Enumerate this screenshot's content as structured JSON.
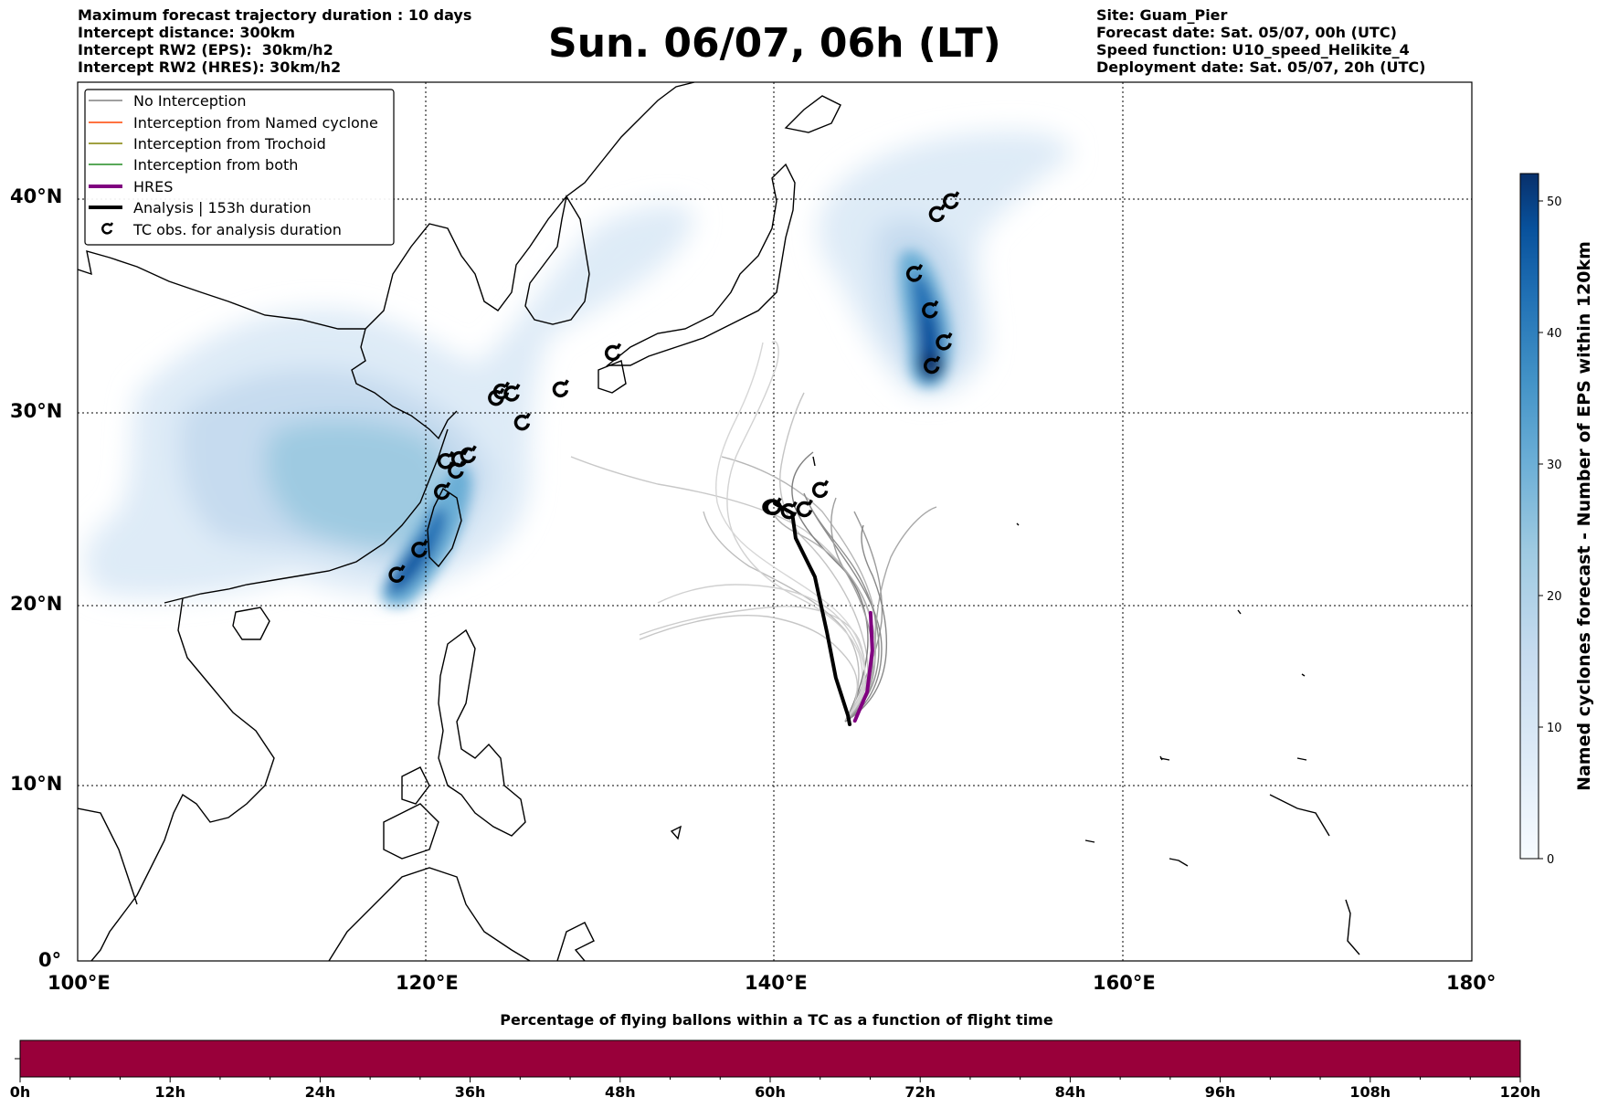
{
  "header": {
    "left": [
      "Maximum forecast trajectory duration : 10 days",
      "Intercept distance: 300km",
      "Intercept RW2 (EPS):  30km/h2",
      "Intercept RW2 (HRES): 30km/h2"
    ],
    "title": "Sun. 06/07, 06h (LT)",
    "right": [
      "Site: Guam_Pier",
      "Forecast date: Sat. 05/07, 00h (UTC)",
      "Speed function: U10_speed_Helikite_4",
      "Deployment date: Sat. 05/07, 20h (UTC)"
    ]
  },
  "map": {
    "lon_range": [
      100,
      180
    ],
    "lat_range": [
      0,
      45.5
    ],
    "lon_ticks": [
      "100°E",
      "120°E",
      "140°E",
      "160°E",
      "180°"
    ],
    "lat_ticks": [
      "0°",
      "10°N",
      "20°N",
      "30°N",
      "40°N"
    ],
    "grid": "dotted"
  },
  "legend": {
    "items": [
      {
        "label": "No Interception",
        "color": "#808080"
      },
      {
        "label": "Interception from Named cyclone",
        "color": "#ff4500"
      },
      {
        "label": "Interception from Trochoid",
        "color": "#808000"
      },
      {
        "label": "Interception from both",
        "color": "#228b22"
      },
      {
        "label": "HRES",
        "color": "#800080"
      },
      {
        "label": "Analysis | 153h duration",
        "color": "#000000"
      },
      {
        "label": "TC obs. for analysis duration",
        "icon": "typhoon-symbol-icon"
      }
    ]
  },
  "colorbar": {
    "label": "Named cyclones forecast - Number of EPS within 120km",
    "ticks": [
      "0",
      "10",
      "20",
      "30",
      "40",
      "50"
    ],
    "colors": [
      "#f7fbff",
      "#deebf7",
      "#c6dbef",
      "#9ecae1",
      "#6baed6",
      "#4292c6",
      "#2171b5",
      "#08519c",
      "#08306b"
    ]
  },
  "progress": {
    "title": "Percentage of flying ballons within a TC as a function of flight time",
    "color": "#99003a",
    "fill_fraction": 1.0,
    "ticks": [
      "0h",
      "12h",
      "24h",
      "36h",
      "48h",
      "60h",
      "72h",
      "84h",
      "96h",
      "108h",
      "120h"
    ]
  },
  "tracks": {
    "analysis": [
      [
        140.0,
        25.3
      ],
      [
        141.0,
        24.8
      ],
      [
        141.2,
        23.5
      ],
      [
        142.3,
        21.5
      ],
      [
        143.0,
        18.5
      ],
      [
        143.5,
        16.0
      ],
      [
        144.2,
        13.9
      ],
      [
        144.3,
        13.4
      ]
    ],
    "hres": [
      [
        144.6,
        13.6
      ],
      [
        145.3,
        15.2
      ],
      [
        145.6,
        17.5
      ],
      [
        145.5,
        19.6
      ]
    ],
    "tc_obs": [
      [
        118.3,
        21.6
      ],
      [
        119.6,
        22.9
      ],
      [
        120.9,
        25.9
      ],
      [
        121.1,
        27.5
      ],
      [
        121.7,
        27.0
      ],
      [
        121.9,
        27.6
      ],
      [
        122.4,
        27.8
      ],
      [
        124.0,
        30.7
      ],
      [
        124.3,
        31.0
      ],
      [
        124.9,
        30.9
      ],
      [
        125.5,
        29.5
      ],
      [
        127.7,
        31.1
      ],
      [
        130.7,
        32.8
      ],
      [
        139.9,
        25.1
      ],
      [
        140.8,
        24.9
      ],
      [
        141.7,
        25.0
      ],
      [
        142.6,
        26.0
      ],
      [
        149.0,
        32.2
      ],
      [
        149.7,
        33.3
      ],
      [
        148.9,
        34.8
      ],
      [
        148.0,
        36.5
      ],
      [
        149.3,
        39.3
      ],
      [
        150.1,
        39.9
      ]
    ]
  }
}
